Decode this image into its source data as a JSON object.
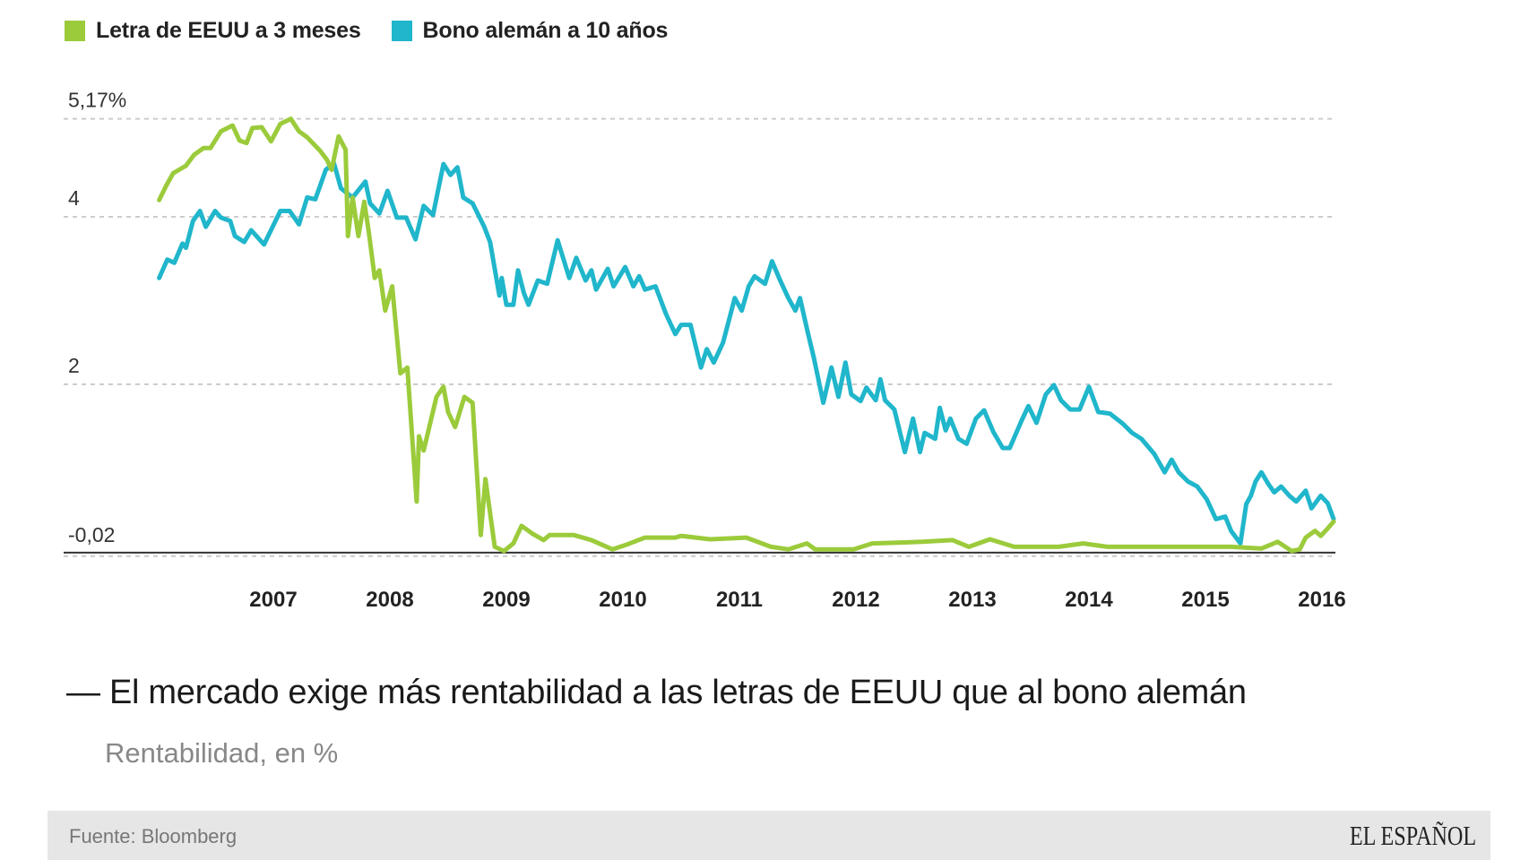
{
  "chart_data": {
    "type": "line",
    "title": "El mercado exige más rentabilidad a las letras de EEUU que al bono alemán",
    "title_prefix": "—",
    "subtitle": "Rentabilidad, en %",
    "xlabel": "",
    "ylabel": "Rentabilidad, en %",
    "ylim": [
      -0.02,
      5.17
    ],
    "xlim": [
      2006.0,
      2016.12
    ],
    "yticks": [
      {
        "value": 5.17,
        "label": "5,17%"
      },
      {
        "value": 4,
        "label": "4"
      },
      {
        "value": 2,
        "label": "2"
      },
      {
        "value": -0.02,
        "label": "-0,02"
      }
    ],
    "xticks": [
      {
        "value": 2007,
        "label": "2007"
      },
      {
        "value": 2008,
        "label": "2008"
      },
      {
        "value": 2009,
        "label": "2009"
      },
      {
        "value": 2010,
        "label": "2010"
      },
      {
        "value": 2011,
        "label": "2011"
      },
      {
        "value": 2012,
        "label": "2012"
      },
      {
        "value": 2013,
        "label": "2013"
      },
      {
        "value": 2014,
        "label": "2014"
      },
      {
        "value": 2015,
        "label": "2015"
      },
      {
        "value": 2016,
        "label": "2016"
      }
    ],
    "grid": true,
    "legend_position": "top-left",
    "series": [
      {
        "name": "Letra de EEUU a 3 meses",
        "color": "#9bcb3b",
        "points": [
          [
            2006.02,
            4.2
          ],
          [
            2006.08,
            4.37
          ],
          [
            2006.14,
            4.52
          ],
          [
            2006.25,
            4.61
          ],
          [
            2006.32,
            4.74
          ],
          [
            2006.4,
            4.82
          ],
          [
            2006.46,
            4.82
          ],
          [
            2006.55,
            5.02
          ],
          [
            2006.65,
            5.09
          ],
          [
            2006.71,
            4.91
          ],
          [
            2006.77,
            4.88
          ],
          [
            2006.82,
            5.06
          ],
          [
            2006.9,
            5.07
          ],
          [
            2006.98,
            4.9
          ],
          [
            2007.06,
            5.11
          ],
          [
            2007.15,
            5.17
          ],
          [
            2007.22,
            5.02
          ],
          [
            2007.29,
            4.95
          ],
          [
            2007.4,
            4.79
          ],
          [
            2007.46,
            4.68
          ],
          [
            2007.5,
            4.56
          ],
          [
            2007.56,
            4.96
          ],
          [
            2007.62,
            4.8
          ],
          [
            2007.64,
            3.77
          ],
          [
            2007.68,
            4.23
          ],
          [
            2007.73,
            3.77
          ],
          [
            2007.78,
            4.18
          ],
          [
            2007.82,
            3.81
          ],
          [
            2007.87,
            3.27
          ],
          [
            2007.91,
            3.36
          ],
          [
            2007.96,
            2.88
          ],
          [
            2008.02,
            3.17
          ],
          [
            2008.09,
            2.13
          ],
          [
            2008.15,
            2.2
          ],
          [
            2008.23,
            0.6
          ],
          [
            2008.25,
            1.38
          ],
          [
            2008.29,
            1.21
          ],
          [
            2008.4,
            1.85
          ],
          [
            2008.46,
            1.97
          ],
          [
            2008.5,
            1.67
          ],
          [
            2008.56,
            1.49
          ],
          [
            2008.64,
            1.85
          ],
          [
            2008.71,
            1.78
          ],
          [
            2008.78,
            0.2
          ],
          [
            2008.82,
            0.87
          ],
          [
            2008.9,
            0.06
          ],
          [
            2008.98,
            0.01
          ],
          [
            2009.06,
            0.1
          ],
          [
            2009.13,
            0.31
          ],
          [
            2009.22,
            0.22
          ],
          [
            2009.32,
            0.14
          ],
          [
            2009.37,
            0.2
          ],
          [
            2009.58,
            0.2
          ],
          [
            2009.73,
            0.14
          ],
          [
            2009.91,
            0.03
          ],
          [
            2010.04,
            0.09
          ],
          [
            2010.19,
            0.17
          ],
          [
            2010.45,
            0.17
          ],
          [
            2010.5,
            0.19
          ],
          [
            2010.75,
            0.15
          ],
          [
            2011.06,
            0.17
          ],
          [
            2011.27,
            0.06
          ],
          [
            2011.42,
            0.03
          ],
          [
            2011.58,
            0.1
          ],
          [
            2011.65,
            0.03
          ],
          [
            2011.98,
            0.03
          ],
          [
            2012.14,
            0.1
          ],
          [
            2012.57,
            0.12
          ],
          [
            2012.83,
            0.14
          ],
          [
            2012.97,
            0.06
          ],
          [
            2013.15,
            0.15
          ],
          [
            2013.36,
            0.06
          ],
          [
            2013.74,
            0.06
          ],
          [
            2013.95,
            0.1
          ],
          [
            2014.16,
            0.06
          ],
          [
            2014.69,
            0.06
          ],
          [
            2015.22,
            0.06
          ],
          [
            2015.48,
            0.04
          ],
          [
            2015.62,
            0.12
          ],
          [
            2015.74,
            0.01
          ],
          [
            2015.81,
            0.03
          ],
          [
            2015.86,
            0.17
          ],
          [
            2015.94,
            0.25
          ],
          [
            2015.99,
            0.19
          ],
          [
            2016.05,
            0.28
          ],
          [
            2016.1,
            0.36
          ]
        ]
      },
      {
        "name": "Bono alemán a 10 años",
        "color": "#20b6cb",
        "points": [
          [
            2006.02,
            3.27
          ],
          [
            2006.09,
            3.49
          ],
          [
            2006.15,
            3.45
          ],
          [
            2006.22,
            3.68
          ],
          [
            2006.25,
            3.63
          ],
          [
            2006.31,
            3.95
          ],
          [
            2006.37,
            4.07
          ],
          [
            2006.42,
            3.88
          ],
          [
            2006.5,
            4.07
          ],
          [
            2006.55,
            3.99
          ],
          [
            2006.63,
            3.95
          ],
          [
            2006.67,
            3.77
          ],
          [
            2006.75,
            3.7
          ],
          [
            2006.81,
            3.84
          ],
          [
            2006.92,
            3.67
          ],
          [
            2007.06,
            4.07
          ],
          [
            2007.14,
            4.07
          ],
          [
            2007.22,
            3.91
          ],
          [
            2007.29,
            4.23
          ],
          [
            2007.36,
            4.21
          ],
          [
            2007.45,
            4.56
          ],
          [
            2007.52,
            4.64
          ],
          [
            2007.58,
            4.34
          ],
          [
            2007.68,
            4.23
          ],
          [
            2007.79,
            4.42
          ],
          [
            2007.83,
            4.16
          ],
          [
            2007.91,
            4.04
          ],
          [
            2007.98,
            4.31
          ],
          [
            2008.06,
            3.99
          ],
          [
            2008.14,
            3.99
          ],
          [
            2008.22,
            3.73
          ],
          [
            2008.29,
            4.13
          ],
          [
            2008.37,
            4.02
          ],
          [
            2008.46,
            4.63
          ],
          [
            2008.52,
            4.5
          ],
          [
            2008.58,
            4.59
          ],
          [
            2008.63,
            4.23
          ],
          [
            2008.71,
            4.16
          ],
          [
            2008.81,
            3.88
          ],
          [
            2008.86,
            3.7
          ],
          [
            2008.94,
            3.06
          ],
          [
            2008.96,
            3.27
          ],
          [
            2009.0,
            2.95
          ],
          [
            2009.06,
            2.95
          ],
          [
            2009.1,
            3.36
          ],
          [
            2009.15,
            3.09
          ],
          [
            2009.19,
            2.95
          ],
          [
            2009.27,
            3.24
          ],
          [
            2009.35,
            3.2
          ],
          [
            2009.44,
            3.72
          ],
          [
            2009.54,
            3.27
          ],
          [
            2009.6,
            3.51
          ],
          [
            2009.68,
            3.24
          ],
          [
            2009.73,
            3.36
          ],
          [
            2009.77,
            3.13
          ],
          [
            2009.87,
            3.38
          ],
          [
            2009.92,
            3.17
          ],
          [
            2010.02,
            3.4
          ],
          [
            2010.09,
            3.17
          ],
          [
            2010.14,
            3.29
          ],
          [
            2010.19,
            3.13
          ],
          [
            2010.28,
            3.17
          ],
          [
            2010.37,
            2.84
          ],
          [
            2010.45,
            2.6
          ],
          [
            2010.5,
            2.71
          ],
          [
            2010.58,
            2.71
          ],
          [
            2010.67,
            2.2
          ],
          [
            2010.72,
            2.42
          ],
          [
            2010.78,
            2.26
          ],
          [
            2010.86,
            2.5
          ],
          [
            2010.96,
            3.03
          ],
          [
            2011.02,
            2.88
          ],
          [
            2011.08,
            3.17
          ],
          [
            2011.13,
            3.29
          ],
          [
            2011.22,
            3.2
          ],
          [
            2011.28,
            3.47
          ],
          [
            2011.35,
            3.24
          ],
          [
            2011.42,
            3.03
          ],
          [
            2011.48,
            2.88
          ],
          [
            2011.52,
            3.03
          ],
          [
            2011.58,
            2.66
          ],
          [
            2011.64,
            2.31
          ],
          [
            2011.72,
            1.78
          ],
          [
            2011.79,
            2.2
          ],
          [
            2011.85,
            1.85
          ],
          [
            2011.91,
            2.26
          ],
          [
            2011.96,
            1.88
          ],
          [
            2012.04,
            1.8
          ],
          [
            2012.09,
            1.96
          ],
          [
            2012.17,
            1.81
          ],
          [
            2012.21,
            2.06
          ],
          [
            2012.25,
            1.81
          ],
          [
            2012.33,
            1.7
          ],
          [
            2012.42,
            1.19
          ],
          [
            2012.49,
            1.59
          ],
          [
            2012.55,
            1.19
          ],
          [
            2012.59,
            1.42
          ],
          [
            2012.68,
            1.35
          ],
          [
            2012.72,
            1.72
          ],
          [
            2012.77,
            1.45
          ],
          [
            2012.81,
            1.59
          ],
          [
            2012.88,
            1.35
          ],
          [
            2012.95,
            1.29
          ],
          [
            2013.03,
            1.59
          ],
          [
            2013.1,
            1.69
          ],
          [
            2013.18,
            1.43
          ],
          [
            2013.26,
            1.24
          ],
          [
            2013.32,
            1.24
          ],
          [
            2013.42,
            1.56
          ],
          [
            2013.48,
            1.74
          ],
          [
            2013.55,
            1.54
          ],
          [
            2013.63,
            1.88
          ],
          [
            2013.7,
            1.99
          ],
          [
            2013.76,
            1.81
          ],
          [
            2013.84,
            1.7
          ],
          [
            2013.92,
            1.7
          ],
          [
            2014.0,
            1.97
          ],
          [
            2014.08,
            1.67
          ],
          [
            2014.18,
            1.65
          ],
          [
            2014.29,
            1.53
          ],
          [
            2014.37,
            1.42
          ],
          [
            2014.45,
            1.35
          ],
          [
            2014.56,
            1.17
          ],
          [
            2014.65,
            0.95
          ],
          [
            2014.71,
            1.1
          ],
          [
            2014.77,
            0.95
          ],
          [
            2014.85,
            0.84
          ],
          [
            2014.93,
            0.78
          ],
          [
            2015.01,
            0.63
          ],
          [
            2015.09,
            0.39
          ],
          [
            2015.17,
            0.42
          ],
          [
            2015.22,
            0.25
          ],
          [
            2015.3,
            0.1
          ],
          [
            2015.35,
            0.57
          ],
          [
            2015.39,
            0.67
          ],
          [
            2015.43,
            0.84
          ],
          [
            2015.48,
            0.95
          ],
          [
            2015.54,
            0.81
          ],
          [
            2015.59,
            0.71
          ],
          [
            2015.65,
            0.78
          ],
          [
            2015.72,
            0.67
          ],
          [
            2015.78,
            0.6
          ],
          [
            2015.86,
            0.73
          ],
          [
            2015.91,
            0.52
          ],
          [
            2015.99,
            0.67
          ],
          [
            2016.05,
            0.58
          ],
          [
            2016.1,
            0.39
          ]
        ]
      }
    ]
  },
  "footer": {
    "source": "Fuente: Bloomberg",
    "logo": "EL ESPAÑOL"
  }
}
